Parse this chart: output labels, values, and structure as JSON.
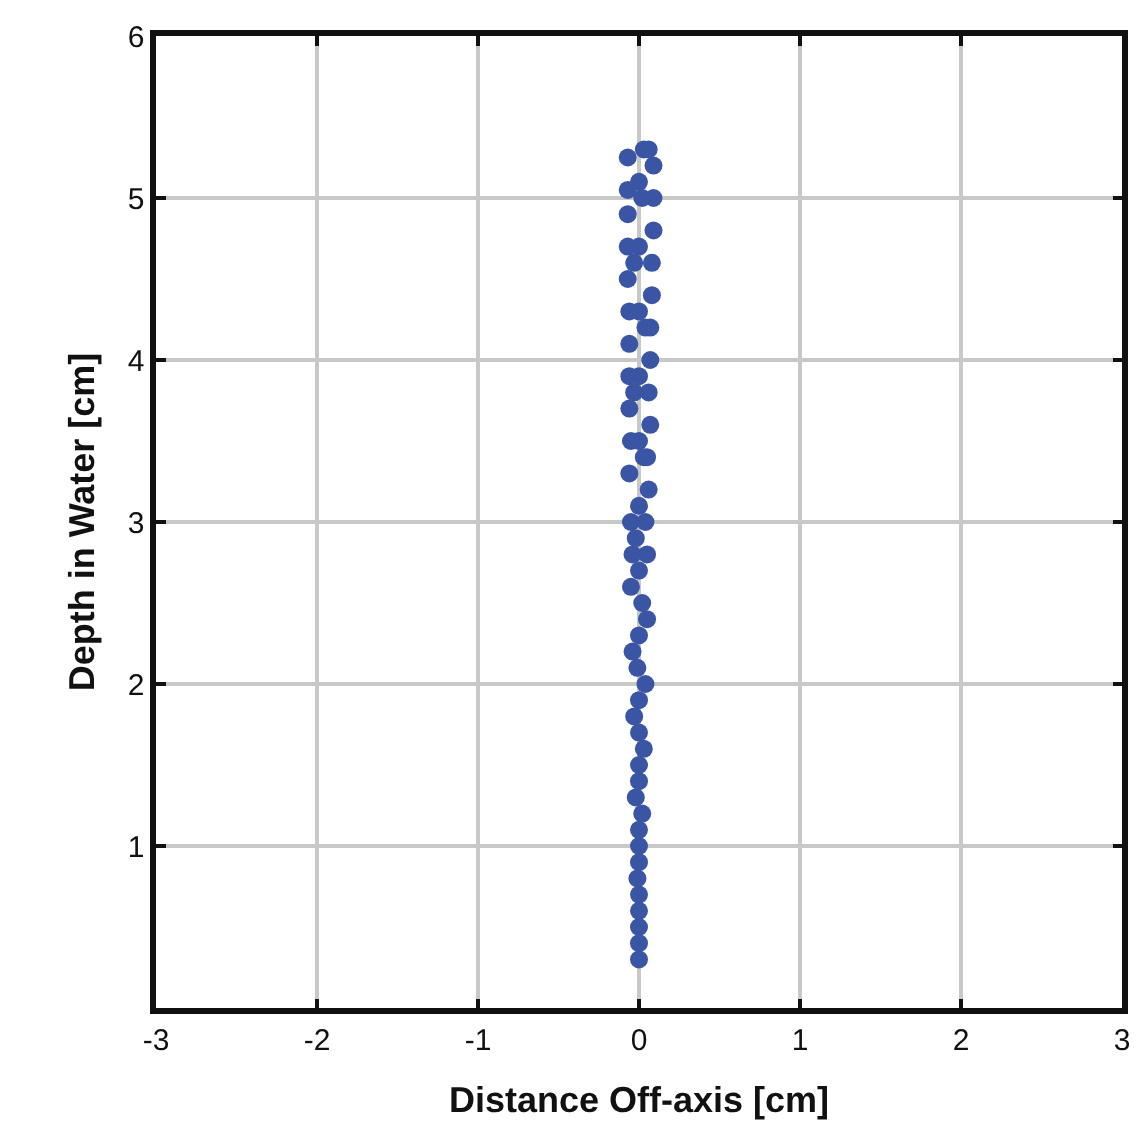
{
  "chart_data": {
    "type": "scatter",
    "xlabel": "Distance Off-axis [cm]",
    "ylabel": "Depth in Water [cm]",
    "xlim": [
      -3,
      3
    ],
    "ylim": [
      0,
      6
    ],
    "xticks": [
      -3,
      -2,
      -1,
      0,
      1,
      2,
      3
    ],
    "yticks": [
      1,
      2,
      3,
      4,
      5,
      6
    ],
    "grid": true,
    "marker": "circle",
    "series": [
      {
        "color": "#3a55a4",
        "x": [
          -0.07,
          -0.07,
          -0.07,
          -0.06,
          -0.06,
          -0.06,
          -0.05,
          -0.05,
          -0.04,
          -0.03,
          -0.02,
          -0.01,
          0,
          0.03,
          0.06,
          0.09,
          0.09,
          0.08,
          0.07,
          0.07,
          0.06,
          0.05,
          0.05,
          0.04,
          0.03,
          0.02,
          0,
          0,
          0,
          0,
          0,
          0,
          0,
          0,
          0,
          0,
          0,
          0,
          0,
          0,
          0,
          0.02,
          -0.03,
          0.04,
          -0.03,
          0.03,
          -0.02,
          0.02,
          -0.01,
          -0.07,
          -0.07,
          -0.06,
          -0.06,
          -0.05,
          -0.04,
          0.09,
          0.08,
          0.07,
          0.06,
          0.05,
          0.04,
          0,
          0,
          0,
          0
        ],
        "values": [
          5.25,
          4.9,
          4.5,
          4.1,
          3.7,
          3.3,
          3.0,
          2.6,
          2.2,
          1.8,
          1.3,
          0.8,
          0.3,
          5.3,
          5.3,
          5.2,
          4.8,
          4.4,
          4.0,
          3.6,
          3.2,
          2.8,
          2.4,
          2.0,
          1.6,
          1.2,
          5.1,
          4.7,
          4.3,
          3.9,
          3.5,
          3.1,
          2.7,
          2.3,
          1.9,
          1.5,
          1.1,
          0.7,
          0.5,
          0.9,
          1.4,
          5.0,
          4.6,
          4.2,
          3.8,
          3.4,
          2.9,
          2.5,
          2.1,
          5.05,
          4.7,
          4.3,
          3.9,
          3.5,
          2.8,
          5.0,
          4.6,
          4.2,
          3.8,
          3.4,
          3.0,
          0.4,
          0.6,
          1.0,
          1.7
        ]
      }
    ]
  }
}
